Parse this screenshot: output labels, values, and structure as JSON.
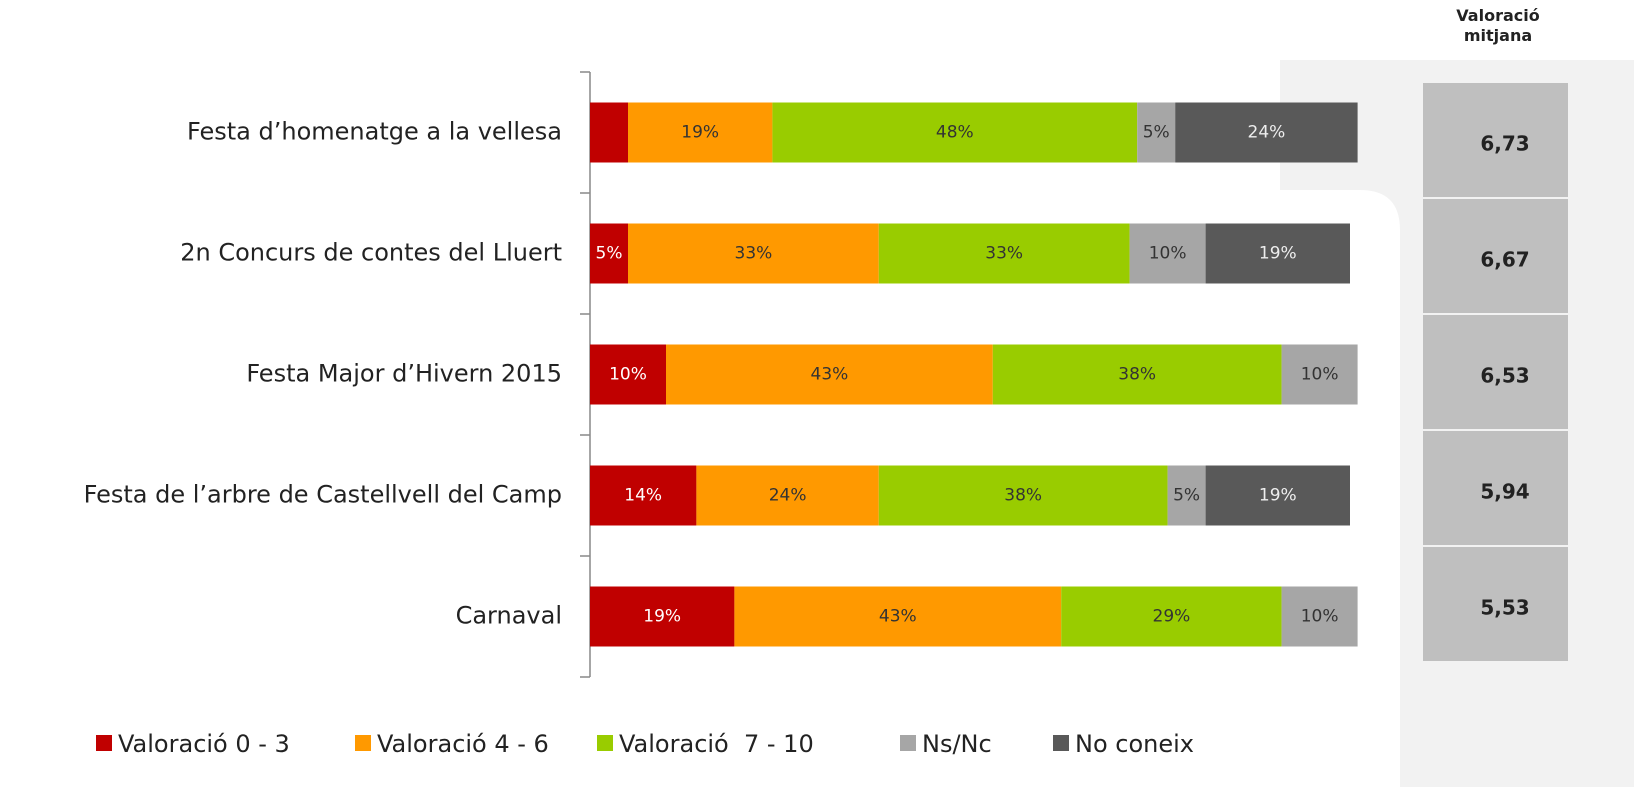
{
  "chart_data": {
    "type": "stacked-bar-horizontal",
    "categories": [
      "Festa d’homenatge a la vellesa",
      "2n Concurs de contes del Lluert",
      "Festa Major d’Hivern 2015",
      "Festa de l’arbre de Castellvell del Camp",
      "Carnaval"
    ],
    "series": [
      {
        "name": "Valoració 0 - 3",
        "color": "#c00000",
        "text_color": "#ffffff",
        "values": [
          5,
          5,
          10,
          14,
          19
        ],
        "value_labels": [
          null,
          "5%",
          "10%",
          "14%",
          "19%"
        ]
      },
      {
        "name": "Valoració 4 - 6",
        "color": "#ff9900",
        "text_color": "#333333",
        "values": [
          19,
          33,
          43,
          24,
          43
        ],
        "value_labels": [
          "19%",
          "33%",
          "43%",
          "24%",
          "43%"
        ]
      },
      {
        "name": "Valoració  7 - 10",
        "color": "#99cc00",
        "text_color": "#333333",
        "values": [
          48,
          33,
          38,
          38,
          29
        ],
        "value_labels": [
          "48%",
          "33%",
          "38%",
          "38%",
          "29%"
        ]
      },
      {
        "name": "Ns/Nc",
        "color": "#a6a6a6",
        "text_color": "#333333",
        "values": [
          5,
          10,
          10,
          5,
          10
        ],
        "value_labels": [
          "5%",
          "10%",
          "10%",
          "5%",
          "10%"
        ]
      },
      {
        "name": "No coneix",
        "color": "#595959",
        "text_color": "#eeeeee",
        "values": [
          24,
          19,
          null,
          19,
          null
        ],
        "value_labels": [
          "24%",
          "19%",
          null,
          "19%",
          null
        ]
      }
    ],
    "average": {
      "header": "Valoració mitjana",
      "color": "#bfbfbf",
      "values": [
        6.73,
        6.67,
        6.53,
        5.94,
        5.53
      ],
      "value_labels": [
        "6,73",
        "6,67",
        "6,53",
        "5,94",
        "5,53"
      ]
    },
    "legend": "bottom"
  }
}
